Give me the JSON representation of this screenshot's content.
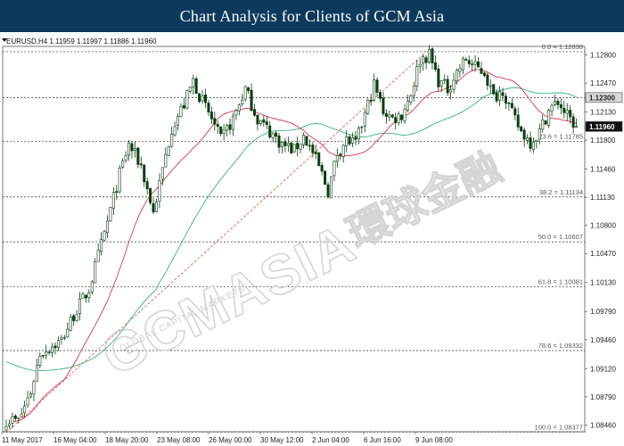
{
  "banner": {
    "title": "Chart Analysis for Clients of GCM Asia"
  },
  "chart_data": {
    "type": "candlestick",
    "symbol_header": "EURUSD,H4  1.11959 1.11997 1.11886 1.11960",
    "watermark": {
      "logo": "GCMASIA",
      "chinese": "環球金融",
      "tagline": "GLOBAL CAPITAL MARKETS"
    },
    "ylim": [
      1.0838,
      1.129
    ],
    "y_ticks": [
      "1.12800",
      "1.12470",
      "1.12130",
      "1.11800",
      "1.11460",
      "1.11130",
      "1.10800",
      "1.10470",
      "1.10130",
      "1.09790",
      "1.09460",
      "1.09120",
      "1.08790",
      "1.08460"
    ],
    "x_labels": [
      "11 May 2017",
      "16 May 04:00",
      "18 May 20:00",
      "23 May 08:00",
      "26 May 00:00",
      "30 May 12:00",
      "2 Jun 04:00",
      "6 Jun 16:00",
      "9 Jun 08:00"
    ],
    "current_price": "1.11960",
    "resistance_price": "1.12300",
    "fibonacci": [
      {
        "label": "0.0 = 1.12838",
        "level": 1.12838
      },
      {
        "label": "23.6 = 1.11785",
        "level": 1.11785
      },
      {
        "label": "38.2 = 1.11134",
        "level": 1.11134
      },
      {
        "label": "50.0 = 1.10607",
        "level": 1.10607
      },
      {
        "label": "61.8 = 1.10081",
        "level": 1.10081
      },
      {
        "label": "78.6 = 1.09332",
        "level": 1.09332
      },
      {
        "label": "100.0 = 1.08377",
        "level": 1.08377
      }
    ],
    "colors": {
      "bull": "#ffffff",
      "bear": "#0b3d12",
      "ma_fast": "#d9364a",
      "ma_slow": "#37b37e",
      "trend": "#e25544",
      "grid": "#333333"
    },
    "close_anchors": [
      {
        "x": 1,
        "y": 1.0852
      },
      {
        "x": 4,
        "y": 1.0851
      },
      {
        "x": 8,
        "y": 1.0885
      },
      {
        "x": 11,
        "y": 1.093
      },
      {
        "x": 18,
        "y": 1.0945
      },
      {
        "x": 22,
        "y": 1.0975
      },
      {
        "x": 27,
        "y": 1.1005
      },
      {
        "x": 32,
        "y": 1.107
      },
      {
        "x": 37,
        "y": 1.114
      },
      {
        "x": 40,
        "y": 1.1175
      },
      {
        "x": 44,
        "y": 1.115
      },
      {
        "x": 48,
        "y": 1.1095
      },
      {
        "x": 51,
        "y": 1.1145
      },
      {
        "x": 54,
        "y": 1.1195
      },
      {
        "x": 58,
        "y": 1.1222
      },
      {
        "x": 61,
        "y": 1.125
      },
      {
        "x": 64,
        "y": 1.1225
      },
      {
        "x": 67,
        "y": 1.1205
      },
      {
        "x": 70,
        "y": 1.118
      },
      {
        "x": 74,
        "y": 1.1205
      },
      {
        "x": 78,
        "y": 1.124
      },
      {
        "x": 82,
        "y": 1.1205
      },
      {
        "x": 86,
        "y": 1.119
      },
      {
        "x": 90,
        "y": 1.1175
      },
      {
        "x": 94,
        "y": 1.1168
      },
      {
        "x": 97,
        "y": 1.1185
      },
      {
        "x": 100,
        "y": 1.1165
      },
      {
        "x": 103,
        "y": 1.114
      },
      {
        "x": 105,
        "y": 1.112
      },
      {
        "x": 108,
        "y": 1.1165
      },
      {
        "x": 111,
        "y": 1.118
      },
      {
        "x": 114,
        "y": 1.1175
      },
      {
        "x": 117,
        "y": 1.121
      },
      {
        "x": 120,
        "y": 1.1245
      },
      {
        "x": 123,
        "y": 1.1215
      },
      {
        "x": 126,
        "y": 1.1205
      },
      {
        "x": 129,
        "y": 1.121
      },
      {
        "x": 132,
        "y": 1.1235
      },
      {
        "x": 135,
        "y": 1.1275
      },
      {
        "x": 138,
        "y": 1.128
      },
      {
        "x": 141,
        "y": 1.125
      },
      {
        "x": 144,
        "y": 1.124
      },
      {
        "x": 147,
        "y": 1.126
      },
      {
        "x": 150,
        "y": 1.1275
      },
      {
        "x": 153,
        "y": 1.1265
      },
      {
        "x": 156,
        "y": 1.126
      },
      {
        "x": 159,
        "y": 1.123
      },
      {
        "x": 162,
        "y": 1.124
      },
      {
        "x": 165,
        "y": 1.121
      },
      {
        "x": 168,
        "y": 1.119
      },
      {
        "x": 171,
        "y": 1.1178
      },
      {
        "x": 174,
        "y": 1.119
      },
      {
        "x": 177,
        "y": 1.1215
      },
      {
        "x": 180,
        "y": 1.1225
      },
      {
        "x": 183,
        "y": 1.1208
      },
      {
        "x": 186,
        "y": 1.1196
      }
    ]
  }
}
